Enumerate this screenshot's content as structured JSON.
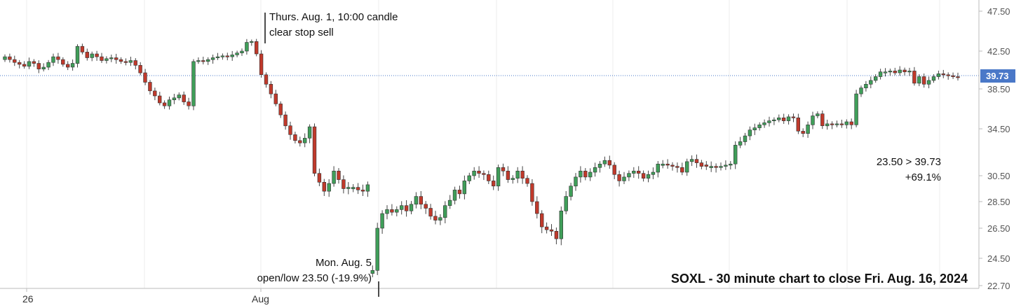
{
  "chart_data": {
    "type": "candlestick",
    "title": "SOXL - 30 minute chart to close Fri. Aug. 16, 2024",
    "y_ticks": [
      "47.50",
      "42.50",
      "38.50",
      "34.50",
      "30.50",
      "28.50",
      "26.50",
      "24.50",
      "22.70"
    ],
    "x_ticks": [
      "26",
      "Aug"
    ],
    "last_price": "39.73",
    "reference_line": 39.73,
    "colors": {
      "up": "#3f9e59",
      "down": "#c0392b",
      "wick": "#444444",
      "reference": "#4a78c8",
      "price_tag": "#4a78c8"
    },
    "annotations": {
      "stop_sell": [
        "Thurs. Aug. 1, 10:00 candle",
        "clear stop sell"
      ],
      "low": [
        "Mon. Aug. 5",
        "open/low 23.50 (-19.9%)"
      ],
      "gain": [
        "23.50 > 39.73",
        "+69.1%"
      ]
    },
    "candles_close": [
      41.9,
      41.6,
      41.3,
      41.1,
      40.9,
      41.4,
      41.2,
      40.6,
      40.8,
      41.3,
      41.9,
      41.6,
      41.1,
      40.8,
      41.2,
      43.1,
      42.4,
      41.8,
      42.2,
      41.9,
      41.5,
      41.7,
      41.8,
      41.6,
      41.4,
      41.3,
      41.5,
      41.0,
      40.2,
      39.2,
      38.3,
      37.8,
      37.1,
      36.8,
      37.4,
      37.6,
      37.9,
      37.2,
      36.8,
      41.4,
      41.5,
      41.4,
      41.6,
      41.8,
      41.9,
      42.0,
      41.9,
      42.1,
      42.3,
      42.5,
      43.6,
      43.7,
      42.2,
      40.0,
      39.0,
      38.0,
      37.0,
      35.9,
      34.8,
      34.0,
      33.5,
      33.3,
      33.7,
      34.7,
      30.7,
      30.0,
      29.3,
      29.9,
      30.9,
      30.2,
      29.5,
      29.6,
      29.6,
      29.4,
      29.3,
      29.8,
      23.7,
      26.5,
      27.6,
      27.9,
      27.7,
      27.9,
      28.2,
      27.8,
      28.3,
      28.9,
      28.3,
      28.0,
      27.4,
      27.1,
      27.3,
      28.2,
      28.6,
      29.4,
      29.1,
      30.1,
      30.5,
      30.9,
      30.7,
      30.6,
      30.1,
      29.7,
      31.2,
      30.9,
      30.2,
      30.3,
      30.9,
      30.3,
      29.9,
      28.5,
      27.6,
      26.6,
      26.4,
      26.3,
      25.8,
      27.8,
      28.9,
      29.7,
      30.4,
      30.9,
      30.4,
      30.8,
      31.2,
      31.5,
      31.8,
      31.4,
      30.6,
      30.1,
      30.4,
      30.7,
      30.9,
      30.7,
      30.3,
      30.6,
      30.8,
      31.5,
      31.5,
      31.4,
      31.3,
      31.2,
      30.8,
      31.7,
      31.9,
      31.6,
      31.3,
      31.3,
      31.3,
      31.2,
      31.3,
      31.4,
      31.5,
      33.1,
      33.4,
      33.9,
      34.4,
      34.6,
      34.9,
      35.1,
      35.3,
      35.4,
      35.6,
      35.3,
      35.7,
      35.6,
      34.3,
      34.1,
      34.9,
      35.8,
      36.0,
      34.8,
      35.0,
      34.9,
      35.0,
      34.9,
      35.2,
      34.9,
      38.0,
      38.6,
      39.0,
      39.4,
      39.8,
      40.3,
      40.3,
      40.4,
      40.2,
      40.5,
      40.3,
      40.4,
      39.1,
      39.8,
      39.0,
      39.4,
      39.8,
      40.1,
      40.0,
      39.9,
      39.8,
      39.7
    ]
  }
}
